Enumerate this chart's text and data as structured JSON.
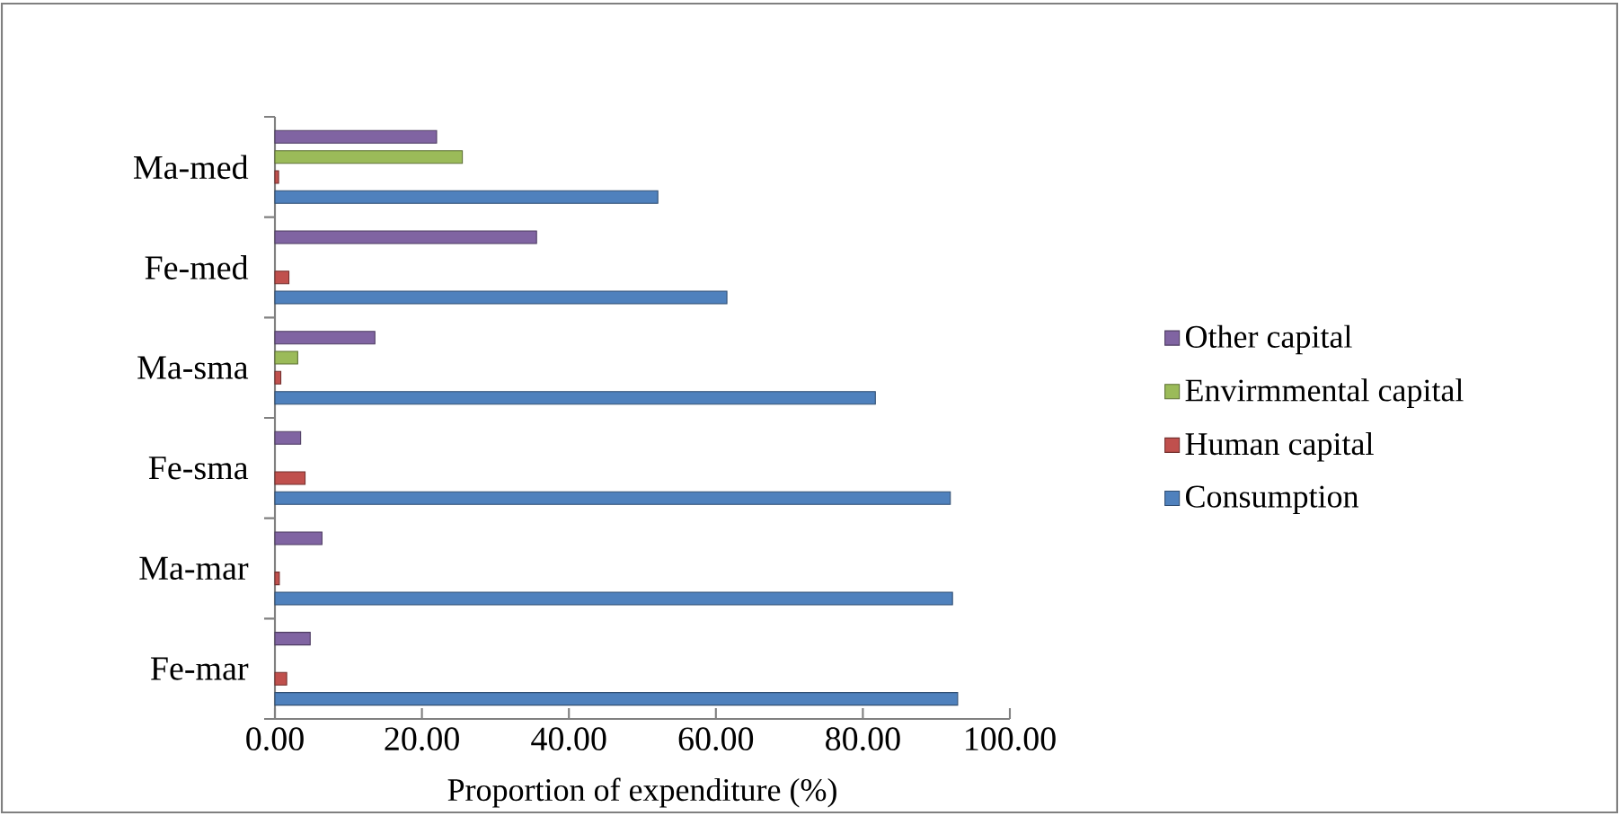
{
  "chart_data": {
    "type": "bar",
    "orientation": "horizontal",
    "xlabel": "Proportion of expenditure (%)",
    "categories": [
      "Ma-med",
      "Fe-med",
      "Ma-sma",
      "Fe-sma",
      "Ma-mar",
      "Fe-mar"
    ],
    "series": [
      {
        "name": "Consumption",
        "color": "#4f81bd",
        "values": [
          52.1,
          61.5,
          81.7,
          91.9,
          92.2,
          92.9
        ]
      },
      {
        "name": "Human capital",
        "color": "#c0504d",
        "values": [
          0.5,
          1.9,
          0.8,
          4.1,
          0.6,
          1.6
        ]
      },
      {
        "name": "Envirmmental capital",
        "color": "#9bbb59",
        "values": [
          25.5,
          null,
          3.1,
          null,
          null,
          null
        ]
      },
      {
        "name": "Other capital",
        "color": "#8064a2",
        "values": [
          22.0,
          35.6,
          13.6,
          3.5,
          6.4,
          4.8
        ]
      }
    ],
    "xlim": [
      0,
      100
    ],
    "xticks": [
      {
        "value": 0,
        "label": "0.00"
      },
      {
        "value": 20,
        "label": "20.00"
      },
      {
        "value": 40,
        "label": "40.00"
      },
      {
        "value": 60,
        "label": "60.00"
      },
      {
        "value": 80,
        "label": "80.00"
      },
      {
        "value": 100,
        "label": "100.00"
      }
    ],
    "grid": false,
    "legend": "right"
  }
}
